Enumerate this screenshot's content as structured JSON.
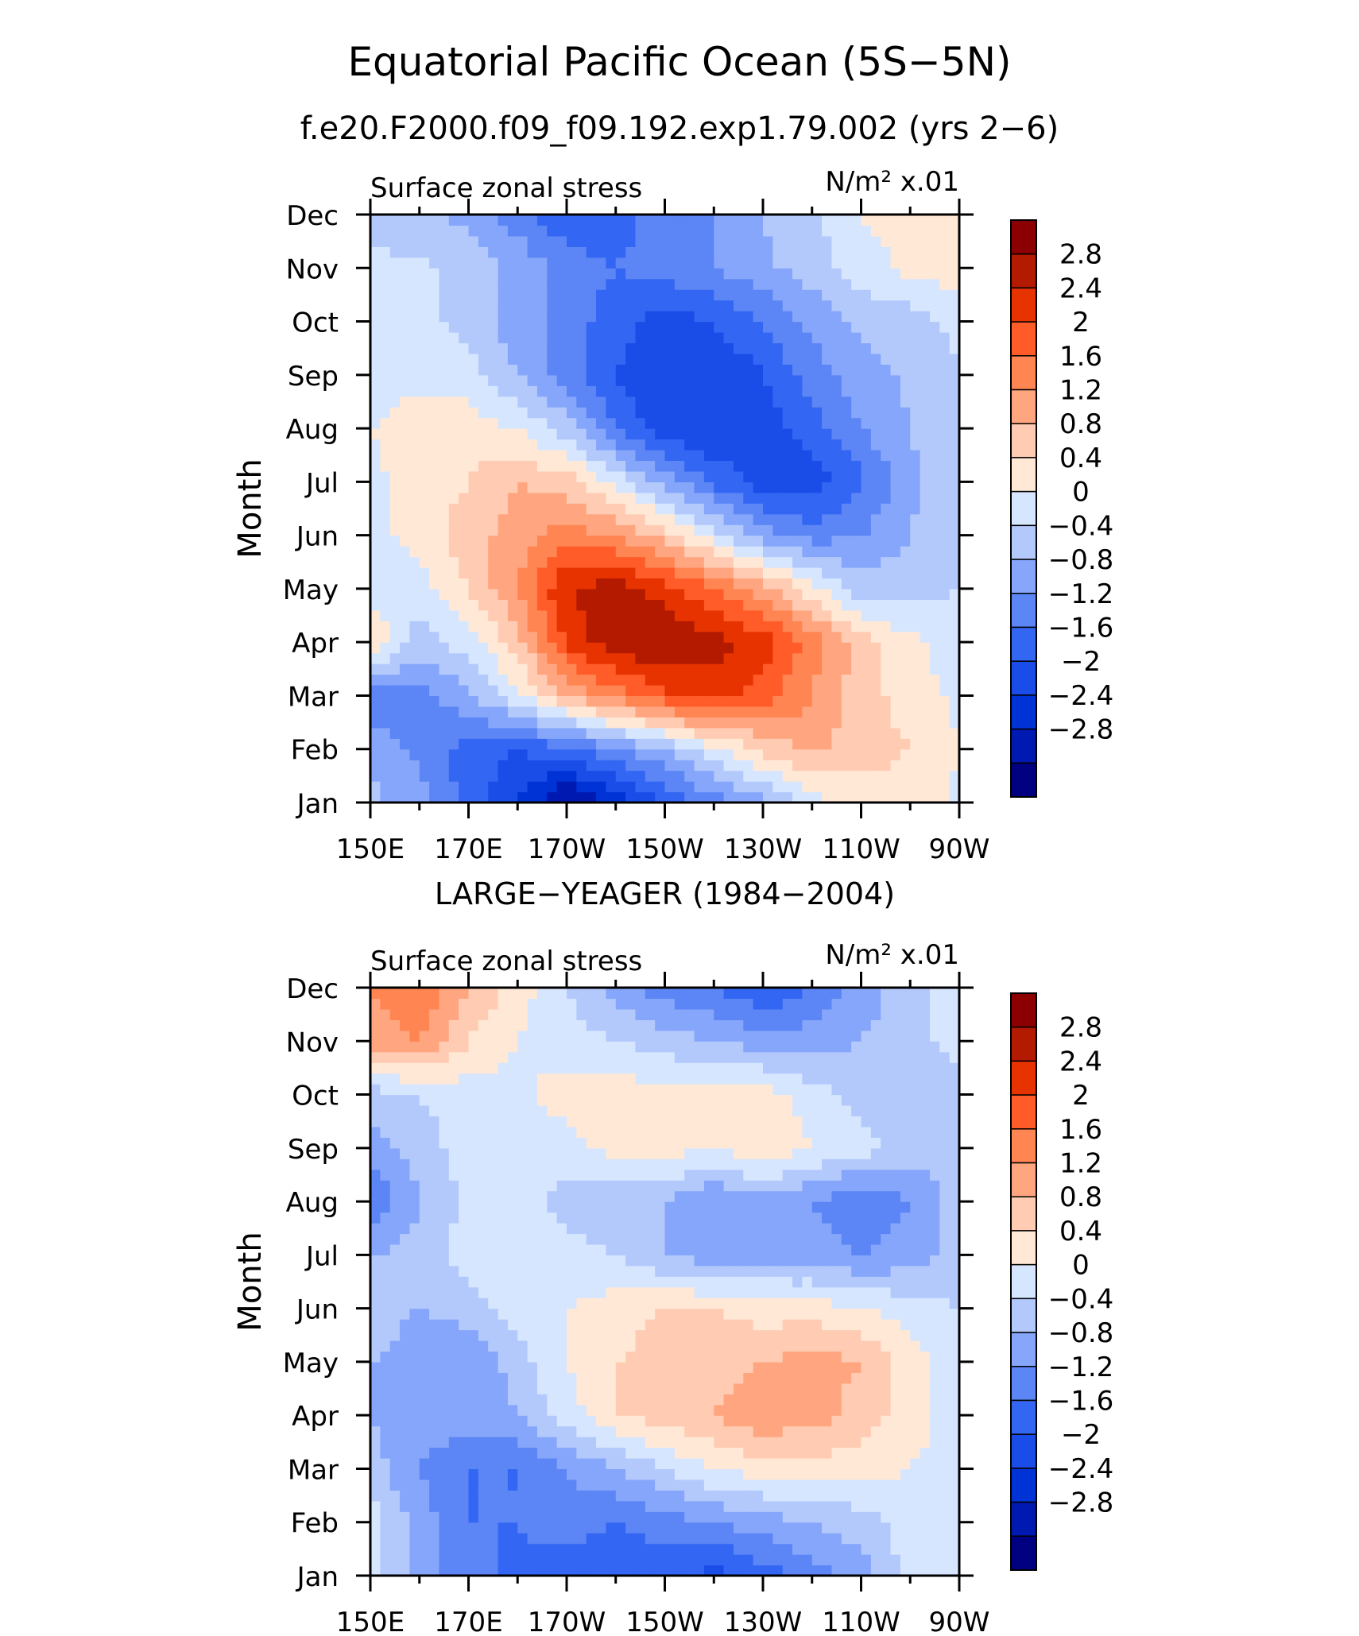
{
  "figure": {
    "title": "Equatorial Pacific Ocean (5S−5N)",
    "subtitle": "f.e20.F2000.f09_f09.192.exp1.79.002 (yrs 2−6)"
  },
  "colors": {
    "levels_fill": [
      "#000080",
      "#0019b0",
      "#0033d6",
      "#1a4de8",
      "#3366f2",
      "#5c85f5",
      "#85a6fa",
      "#b3c9fc",
      "#d6e6ff",
      "#ffe8d6",
      "#ffccb3",
      "#ffa680",
      "#ff8552",
      "#ff5c29",
      "#e63300",
      "#b31a00",
      "#8b0000"
    ],
    "neutral": "#ffe8d6"
  },
  "chart_data": [
    {
      "type": "heatmap",
      "title": "",
      "panel_title": "",
      "left_label": "Surface zonal stress",
      "right_label": "N/m² x.01",
      "ylabel": "Month",
      "xlabel": "",
      "x_tick_labels": [
        "150E",
        "170E",
        "170W",
        "150W",
        "130W",
        "110W",
        "90W"
      ],
      "x_ticks_lon": [
        150,
        170,
        190,
        210,
        230,
        250,
        270
      ],
      "xlim": [
        150,
        270
      ],
      "y_tick_labels": [
        "Jan",
        "Feb",
        "Mar",
        "Apr",
        "May",
        "Jun",
        "Jul",
        "Aug",
        "Sep",
        "Oct",
        "Nov",
        "Dec"
      ],
      "ylim": [
        1,
        12
      ],
      "colorbar_labels": [
        "2.8",
        "2.4",
        "2",
        "1.6",
        "1.2",
        "0.8",
        "0.4",
        "0",
        "−0.4",
        "−0.8",
        "−1.2",
        "−1.6",
        "−2",
        "−2.4",
        "−2.8"
      ],
      "levels": [
        -2.8,
        -2.4,
        -2,
        -1.6,
        -1.2,
        -0.8,
        -0.4,
        0,
        0.4,
        0.8,
        1.2,
        1.6,
        2,
        2.4,
        2.8
      ],
      "grid_lon": [
        150,
        160,
        170,
        180,
        190,
        200,
        210,
        220,
        230,
        240,
        250,
        260,
        270
      ],
      "grid_month": [
        1,
        2,
        3,
        4,
        5,
        6,
        7,
        8,
        9,
        10,
        11,
        12
      ],
      "values": [
        [
          -0.3,
          -0.6,
          -1.4,
          -2.0,
          -3.0,
          -2.2,
          -1.6,
          -1.0,
          -0.5,
          0.2,
          0.6,
          0.6,
          0.3
        ],
        [
          -0.5,
          -0.9,
          -1.4,
          -1.6,
          -1.3,
          -0.9,
          -0.4,
          0.3,
          0.9,
          1.3,
          1.0,
          0.8,
          0.4
        ],
        [
          -1.2,
          -1.0,
          -0.5,
          0.3,
          1.2,
          1.8,
          2.3,
          2.6,
          2.2,
          1.6,
          1.0,
          0.6,
          0.3
        ],
        [
          0.8,
          -0.2,
          0.2,
          1.0,
          2.5,
          3.1,
          3.2,
          3.0,
          2.6,
          1.8,
          1.0,
          0.5,
          0.2
        ],
        [
          0.2,
          0.2,
          0.8,
          1.6,
          2.8,
          3.0,
          2.6,
          2.0,
          1.4,
          0.6,
          -0.2,
          -0.2,
          0.0
        ],
        [
          0.2,
          0.6,
          1.0,
          1.4,
          1.8,
          1.6,
          1.0,
          0.2,
          -0.6,
          -1.0,
          -0.8,
          -0.4,
          -0.1
        ],
        [
          0.3,
          0.6,
          0.8,
          1.2,
          1.0,
          0.3,
          -0.6,
          -1.3,
          -1.8,
          -1.8,
          -1.3,
          -0.5,
          -0.1
        ],
        [
          0.4,
          0.6,
          0.6,
          0.4,
          -0.2,
          -1.2,
          -1.9,
          -2.0,
          -1.8,
          -1.4,
          -0.8,
          -0.4,
          -0.1
        ],
        [
          0.2,
          0.3,
          0.2,
          -0.4,
          -1.0,
          -1.6,
          -2.0,
          -2.0,
          -1.6,
          -1.0,
          -0.6,
          -0.3,
          0.0
        ],
        [
          0.2,
          0.2,
          -0.2,
          -0.6,
          -1.0,
          -1.4,
          -1.8,
          -1.6,
          -1.2,
          -0.7,
          -0.3,
          -0.2,
          0.1
        ],
        [
          0.1,
          0.1,
          -0.2,
          -0.5,
          -1.0,
          -1.2,
          -1.0,
          -0.8,
          -0.5,
          -0.2,
          0.2,
          0.5,
          0.6
        ],
        [
          -0.2,
          -0.3,
          -0.5,
          -1.0,
          -1.5,
          -1.4,
          -1.0,
          -0.8,
          -0.4,
          -0.1,
          0.4,
          0.6,
          0.6
        ]
      ]
    },
    {
      "type": "heatmap",
      "title": "",
      "panel_title": "LARGE−YEAGER (1984−2004)",
      "left_label": "Surface zonal stress",
      "right_label": "N/m² x.01",
      "ylabel": "Month",
      "xlabel": "",
      "x_tick_labels": [
        "150E",
        "170E",
        "170W",
        "150W",
        "130W",
        "110W",
        "90W"
      ],
      "x_ticks_lon": [
        150,
        170,
        190,
        210,
        230,
        250,
        270
      ],
      "xlim": [
        150,
        270
      ],
      "y_tick_labels": [
        "Jan",
        "Feb",
        "Mar",
        "Apr",
        "May",
        "Jun",
        "Jul",
        "Aug",
        "Sep",
        "Oct",
        "Nov",
        "Dec"
      ],
      "ylim": [
        1,
        12
      ],
      "colorbar_labels": [
        "2.8",
        "2.4",
        "2",
        "1.6",
        "1.2",
        "0.8",
        "0.4",
        "0",
        "−0.4",
        "−0.8",
        "−1.2",
        "−1.6",
        "−2",
        "−2.4",
        "−2.8"
      ],
      "levels": [
        -2.8,
        -2.4,
        -2,
        -1.6,
        -1.2,
        -0.8,
        -0.4,
        0,
        0.4,
        0.8,
        1.2,
        1.6,
        2,
        2.4,
        2.8
      ],
      "grid_lon": [
        150,
        160,
        170,
        180,
        190,
        200,
        210,
        220,
        230,
        240,
        250,
        260,
        270
      ],
      "grid_month": [
        1,
        2,
        3,
        4,
        5,
        6,
        7,
        8,
        9,
        10,
        11,
        12
      ],
      "values": [
        [
          0.2,
          -0.6,
          -1.0,
          -1.3,
          -1.4,
          -1.6,
          -1.4,
          -1.8,
          -1.4,
          -1.0,
          -0.6,
          0.2,
          0.2
        ],
        [
          0.2,
          -0.6,
          -1.2,
          -1.2,
          -1.0,
          -1.2,
          -1.0,
          -0.8,
          -0.6,
          -0.4,
          -0.2,
          0.2,
          0.2
        ],
        [
          -0.2,
          -0.8,
          -1.2,
          -1.2,
          -0.8,
          -0.4,
          0.0,
          0.4,
          0.6,
          0.6,
          0.6,
          0.4,
          0.2
        ],
        [
          -0.4,
          -0.6,
          -0.6,
          -0.4,
          0.2,
          0.8,
          1.0,
          1.2,
          1.5,
          1.4,
          1.0,
          0.6,
          0.2
        ],
        [
          -0.4,
          -0.6,
          -0.8,
          -0.2,
          0.4,
          0.8,
          1.0,
          1.0,
          1.2,
          1.4,
          1.2,
          0.6,
          0.2
        ],
        [
          -0.2,
          -0.4,
          -0.2,
          0.2,
          0.4,
          0.6,
          0.8,
          0.8,
          0.6,
          0.6,
          0.4,
          0.2,
          0.0
        ],
        [
          -0.4,
          -0.2,
          0.2,
          0.3,
          0.2,
          0.0,
          -0.4,
          -0.6,
          -0.6,
          -0.6,
          -0.8,
          -0.6,
          -0.2
        ],
        [
          -1.2,
          -0.4,
          0.1,
          0.2,
          -0.2,
          -0.4,
          -0.4,
          -0.8,
          -0.6,
          -0.8,
          -1.2,
          -0.8,
          -0.2
        ],
        [
          -0.6,
          -0.2,
          0.2,
          0.2,
          0.2,
          0.6,
          0.6,
          0.4,
          0.8,
          0.4,
          0.2,
          -0.2,
          -0.2
        ],
        [
          -0.2,
          0.0,
          0.2,
          0.3,
          0.6,
          0.6,
          0.6,
          0.6,
          0.6,
          0.2,
          -0.2,
          -0.4,
          -0.2
        ],
        [
          1.4,
          1.6,
          0.8,
          0.4,
          0.2,
          0.0,
          -0.2,
          -0.4,
          -0.6,
          -0.6,
          -0.4,
          -0.2,
          0.2
        ],
        [
          1.6,
          2.0,
          1.2,
          0.6,
          0.0,
          -0.6,
          -1.0,
          -1.2,
          -1.6,
          -1.2,
          -0.6,
          -0.2,
          0.2
        ]
      ]
    }
  ]
}
